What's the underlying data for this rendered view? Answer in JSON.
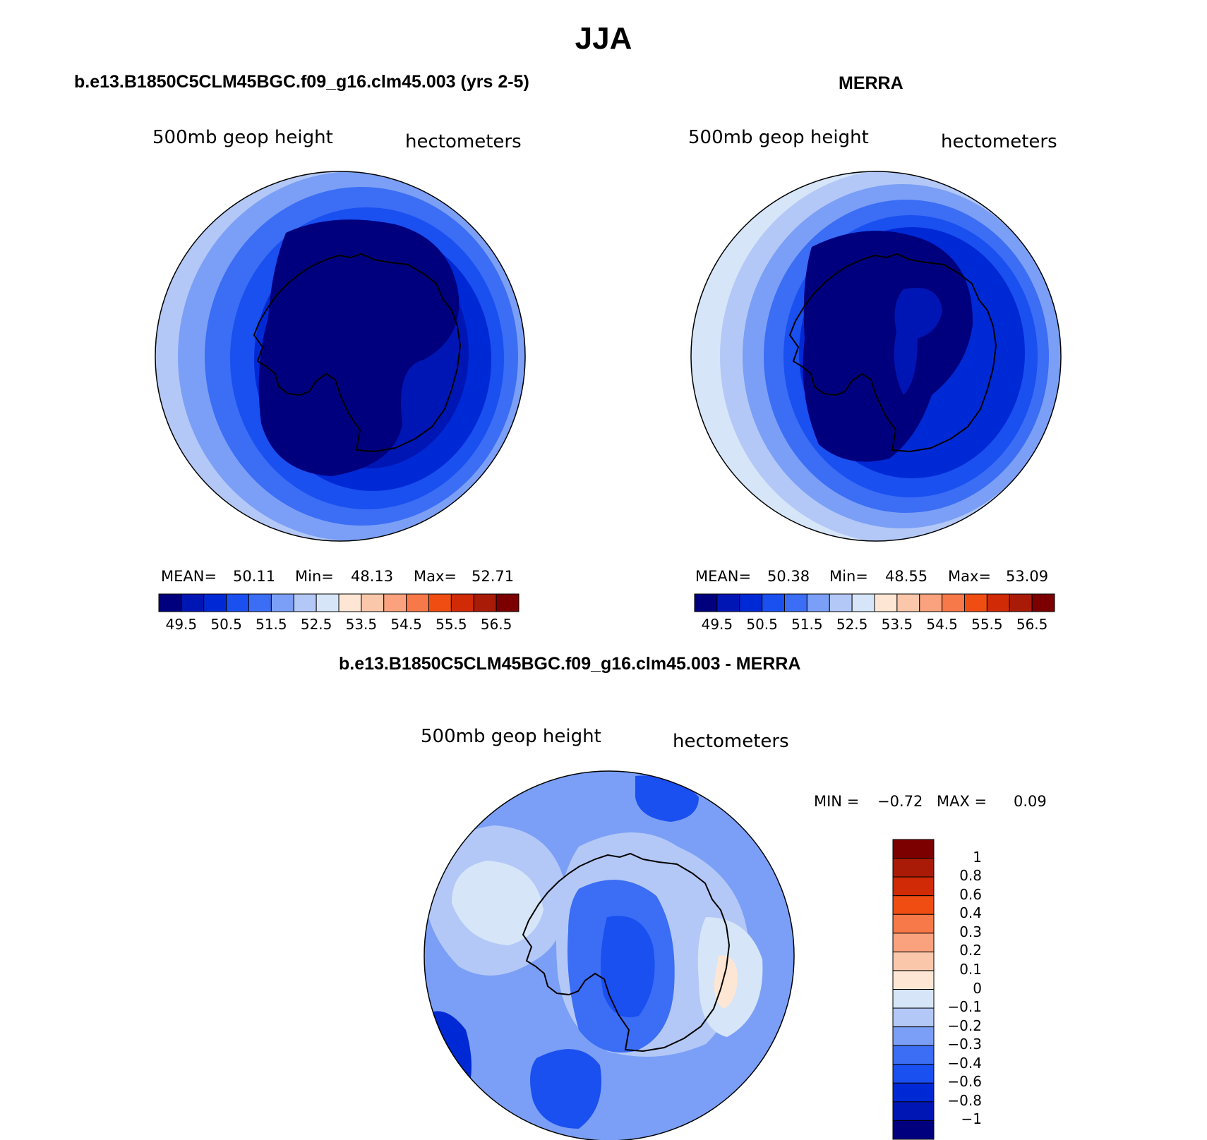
{
  "title": "JJA",
  "panels": {
    "model": {
      "title": "b.e13.B1850C5CLM45BGC.f09_g16.clm45.003 (yrs 2-5)",
      "variable": "500mb geop height",
      "units": "hectometers",
      "stats": {
        "mean_label": "MEAN=",
        "mean": "50.11",
        "min_label": "Min=",
        "min": "48.13",
        "max_label": "Max=",
        "max": "52.71"
      }
    },
    "obs": {
      "title": "MERRA",
      "variable": "500mb geop height",
      "units": "hectometers",
      "stats": {
        "mean_label": "MEAN=",
        "mean": "50.38",
        "min_label": "Min=",
        "min": "48.55",
        "max_label": "Max=",
        "max": "53.09"
      }
    },
    "diff": {
      "title": "b.e13.B1850C5CLM45BGC.f09_g16.clm45.003 - MERRA",
      "variable": "500mb geop height",
      "units": "hectometers",
      "stats": {
        "min_label": "MIN =",
        "min": "−0.72",
        "max_label": "MAX =",
        "max": "0.09"
      }
    }
  },
  "colorbar_abs": {
    "colors": [
      "#00007f",
      "#0016b4",
      "#0029d6",
      "#1a4ff0",
      "#3b6df5",
      "#7b9ff6",
      "#b3c8f7",
      "#d6e6f8",
      "#fde6d4",
      "#fbc7aa",
      "#f9a27d",
      "#f77848",
      "#f04d13",
      "#d02a07",
      "#a91b07",
      "#7c0000"
    ],
    "labels": [
      "49.5",
      "50.5",
      "51.5",
      "52.5",
      "53.5",
      "54.5",
      "55.5",
      "56.5"
    ]
  },
  "colorbar_diff": {
    "colors": [
      "#7c0000",
      "#a91b07",
      "#d02a07",
      "#f04d13",
      "#f77848",
      "#f9a27d",
      "#fbc7aa",
      "#fde6d4",
      "#d6e6f8",
      "#b3c8f7",
      "#7b9ff6",
      "#3b6df5",
      "#1a4ff0",
      "#0029d6",
      "#0016b4",
      "#00007f"
    ],
    "labels": [
      "1",
      "0.8",
      "0.6",
      "0.4",
      "0.3",
      "0.2",
      "0.1",
      "0",
      "−0.1",
      "−0.2",
      "−0.3",
      "−0.4",
      "−0.6",
      "−0.8",
      "−1"
    ]
  },
  "map_colors": {
    "ring": [
      "#b3c8f7",
      "#7b9ff6",
      "#3b6df5",
      "#1a4ff0",
      "#0029d6",
      "#0016b4",
      "#00007f"
    ],
    "obs_outer": "#d6e6f8",
    "diff_base": "#7b9ff6",
    "diff_light": "#b3c8f7",
    "diff_pale": "#d6e6f8",
    "diff_mid": "#3b6df5",
    "diff_dark": "#1a4ff0",
    "diff_darker": "#0029d6",
    "diff_pos": "#fde6d4"
  }
}
